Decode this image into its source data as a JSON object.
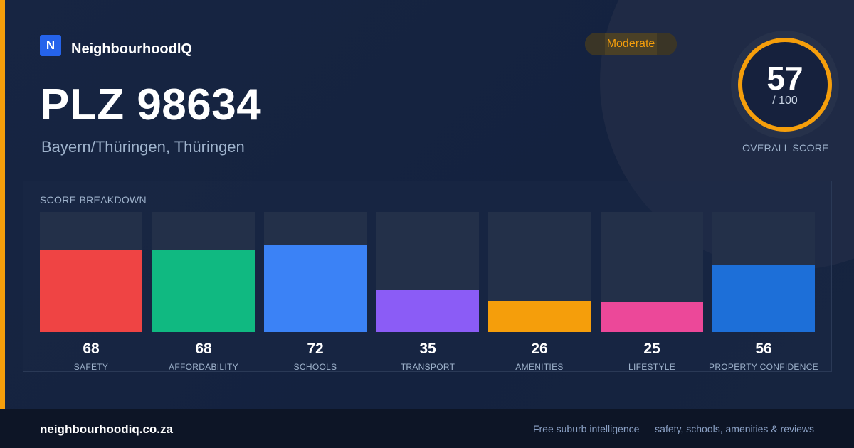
{
  "brand": {
    "logo_letter": "N",
    "name": "NeighbourhoodIQ",
    "accent_color": "#f59e0b",
    "logo_color": "#2563eb"
  },
  "header": {
    "title": "PLZ 98634",
    "subtitle": "Bayern/Thüringen, Thüringen"
  },
  "badge": {
    "label": "Moderate",
    "color": "#f59e0b"
  },
  "overall": {
    "score": "57",
    "max": "/ 100",
    "label": "OVERALL SCORE",
    "fraction": 0.57
  },
  "breakdown": {
    "title": "SCORE BREAKDOWN",
    "items": [
      {
        "label": "SAFETY",
        "value": "68",
        "color": "#ef4444"
      },
      {
        "label": "AFFORDABILITY",
        "value": "68",
        "color": "#10b981"
      },
      {
        "label": "SCHOOLS",
        "value": "72",
        "color": "#3b82f6"
      },
      {
        "label": "TRANSPORT",
        "value": "35",
        "color": "#8b5cf6"
      },
      {
        "label": "AMENITIES",
        "value": "26",
        "color": "#f59e0b"
      },
      {
        "label": "LIFESTYLE",
        "value": "25",
        "color": "#ec4899"
      },
      {
        "label": "PROPERTY CONFIDENCE",
        "value": "56",
        "color": "#1d6fd8"
      }
    ]
  },
  "footer": {
    "url": "neighbourhoodiq.co.za",
    "tagline": "Free suburb intelligence — safety, schools, amenities & reviews"
  }
}
